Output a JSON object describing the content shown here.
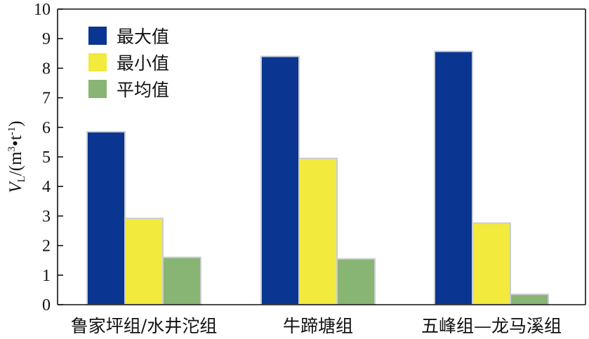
{
  "chart_data": {
    "type": "bar",
    "categories": [
      "鲁家坪组/水井沱组",
      "牛蹄塘组",
      "五峰组—龙马溪组"
    ],
    "series": [
      {
        "name": "最大值",
        "values": [
          5.85,
          8.4,
          8.57
        ],
        "color": "#0a3591"
      },
      {
        "name": "最小值",
        "values": [
          2.92,
          4.95,
          2.76
        ],
        "color": "#f2ea3c"
      },
      {
        "name": "平均值",
        "values": [
          1.6,
          1.55,
          0.35
        ],
        "color": "#88b474"
      }
    ],
    "ylim": [
      0,
      10
    ],
    "yticks": [
      0,
      1,
      2,
      3,
      4,
      5,
      6,
      7,
      8,
      9,
      10
    ],
    "ylabel": {
      "symbol": "V",
      "subscript": "L",
      "unit_prefix": "/(m",
      "sup1": "3",
      "mid": "•t",
      "sup2": "-1",
      "close": ")"
    },
    "legend_position": "top-left",
    "grid": false
  }
}
